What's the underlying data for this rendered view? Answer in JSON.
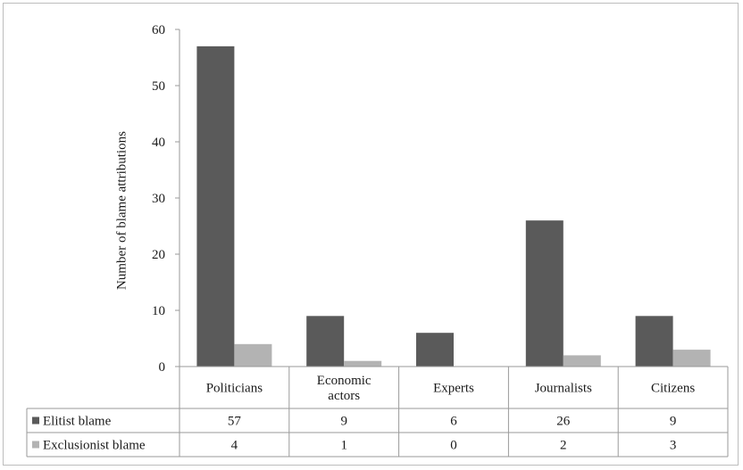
{
  "chart_data": {
    "type": "bar",
    "categories": [
      "Politicians",
      "Economic\nactors",
      "Experts",
      "Journalists",
      "Citizens"
    ],
    "series": [
      {
        "name": "Elitist blame",
        "values": [
          57,
          9,
          6,
          26,
          9
        ],
        "color": "#5a5a5a"
      },
      {
        "name": "Exclusionist blame",
        "values": [
          4,
          1,
          0,
          2,
          3
        ],
        "color": "#b3b3b3"
      }
    ],
    "ylabel": "Number of blame attributions",
    "ylim": [
      0,
      60
    ],
    "yticks": [
      0,
      10,
      20,
      30,
      40,
      50,
      60
    ],
    "grid": false,
    "legend": "data-table"
  }
}
